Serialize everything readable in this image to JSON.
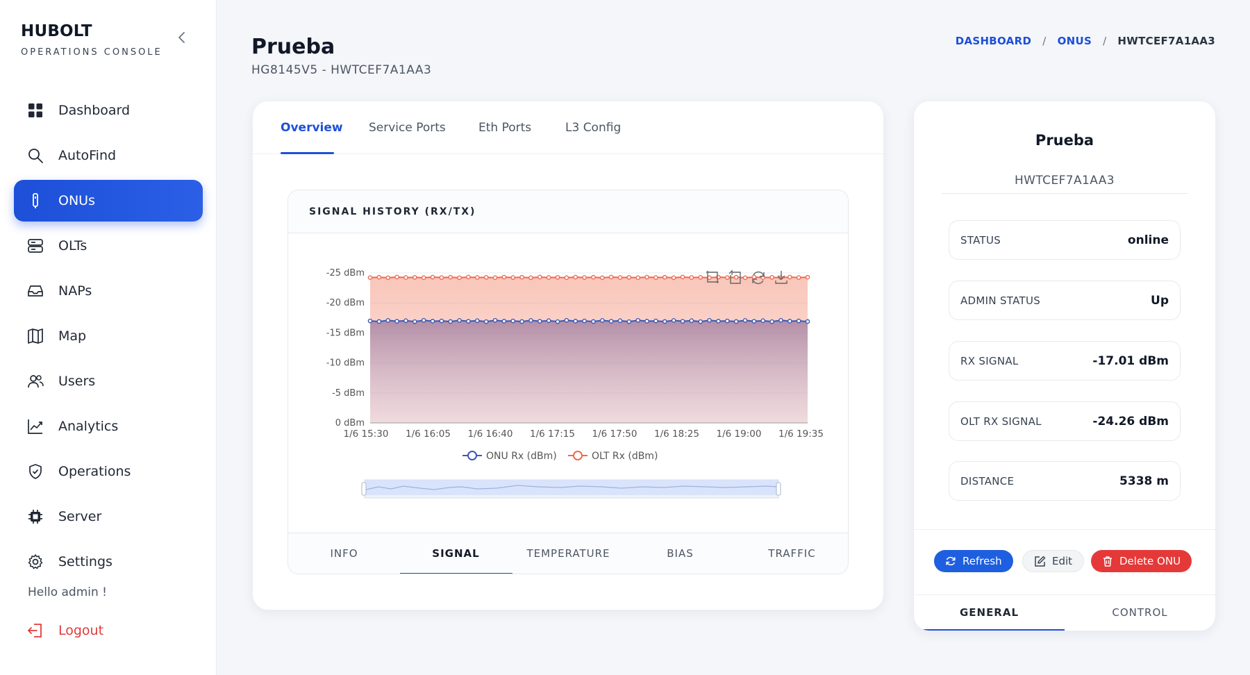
{
  "sidebar": {
    "brand": "HUBOLT",
    "brand_sub": "OPERATIONS CONSOLE",
    "items": [
      {
        "label": "Dashboard",
        "icon": "dashboard-icon"
      },
      {
        "label": "AutoFind",
        "icon": "search-icon"
      },
      {
        "label": "ONUs",
        "icon": "onu-device-icon",
        "active": true
      },
      {
        "label": "OLTs",
        "icon": "server-stack-icon"
      },
      {
        "label": "NAPs",
        "icon": "inbox-icon"
      },
      {
        "label": "Map",
        "icon": "map-icon"
      },
      {
        "label": "Users",
        "icon": "users-icon"
      },
      {
        "label": "Analytics",
        "icon": "chart-line-icon"
      },
      {
        "label": "Operations",
        "icon": "shield-icon"
      },
      {
        "label": "Server",
        "icon": "cpu-icon"
      },
      {
        "label": "Settings",
        "icon": "gear-icon"
      }
    ],
    "greeting": "Hello admin !",
    "logout": "Logout"
  },
  "header": {
    "title": "Prueba",
    "subtitle": "HG8145V5 - HWTCEF7A1AA3",
    "breadcrumb": [
      "DASHBOARD",
      "ONUS",
      "HWTCEF7A1AA3"
    ]
  },
  "main": {
    "tabs": [
      "Overview",
      "Service Ports",
      "Eth Ports",
      "L3 Config"
    ],
    "active_tab": "Overview",
    "panel_title": "SIGNAL HISTORY (RX/TX)",
    "bottom_tabs": [
      "INFO",
      "SIGNAL",
      "TEMPERATURE",
      "BIAS",
      "TRAFFIC"
    ],
    "active_bottom_tab": "SIGNAL"
  },
  "chart_data": {
    "type": "area",
    "x": [
      "1/6 15:30",
      "1/6 16:05",
      "1/6 16:40",
      "1/6 17:15",
      "1/6 17:50",
      "1/6 18:25",
      "1/6 19:00",
      "1/6 19:35"
    ],
    "y_ticks": [
      "-25 dBm",
      "-20 dBm",
      "-15 dBm",
      "-10 dBm",
      "-5 dBm",
      "0 dBm"
    ],
    "ylim": [
      0,
      -25
    ],
    "points_per_series": 50,
    "series": [
      {
        "name": "ONU Rx (dBm)",
        "color": "#3c58b5",
        "value": -17.0
      },
      {
        "name": "OLT Rx (dBm)",
        "color": "#ee6a4f",
        "value": -24.26
      }
    ],
    "legend_position": "bottom",
    "grid": true,
    "zoom_slider": true
  },
  "device": {
    "name": "Prueba",
    "serial": "HWTCEF7A1AA3",
    "fields": [
      {
        "label": "STATUS",
        "value": "online"
      },
      {
        "label": "ADMIN STATUS",
        "value": "Up"
      },
      {
        "label": "RX SIGNAL",
        "value": "-17.01 dBm"
      },
      {
        "label": "OLT RX SIGNAL",
        "value": "-24.26 dBm"
      },
      {
        "label": "DISTANCE",
        "value": "5338 m"
      }
    ],
    "buttons": {
      "refresh": "Refresh",
      "edit": "Edit",
      "delete": "Delete ONU"
    },
    "tabs": [
      "GENERAL",
      "CONTROL"
    ],
    "active_tab": "GENERAL"
  },
  "colors": {
    "accent": "#1d4fd8",
    "danger": "#e53939"
  }
}
